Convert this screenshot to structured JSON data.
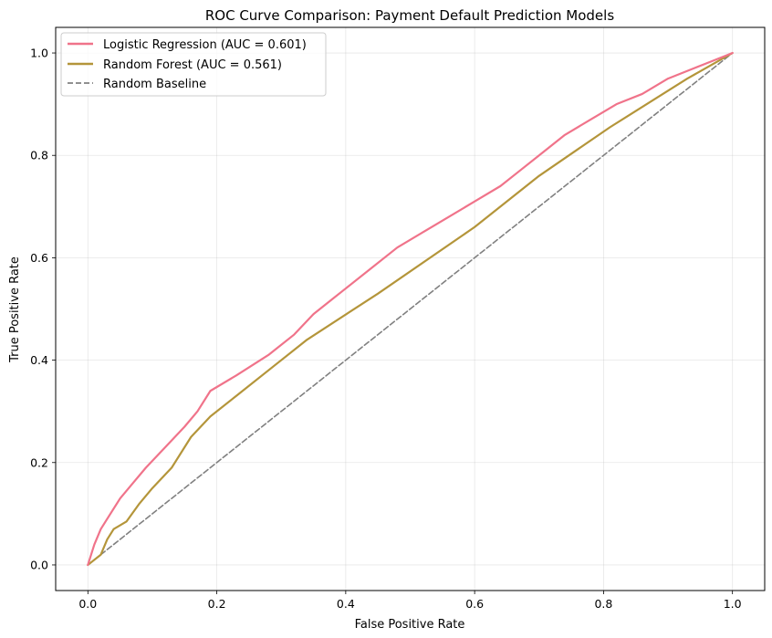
{
  "chart_data": {
    "type": "line",
    "title": "ROC Curve Comparison: Payment Default Prediction Models",
    "xlabel": "False Positive Rate",
    "ylabel": "True Positive Rate",
    "xlim": [
      -0.05,
      1.05
    ],
    "ylim": [
      -0.05,
      1.05
    ],
    "xticks": [
      0.0,
      0.2,
      0.4,
      0.6,
      0.8,
      1.0
    ],
    "yticks": [
      0.0,
      0.2,
      0.4,
      0.6,
      0.8,
      1.0
    ],
    "xtick_labels": [
      "0.0",
      "0.2",
      "0.4",
      "0.6",
      "0.8",
      "1.0"
    ],
    "ytick_labels": [
      "0.0",
      "0.2",
      "0.4",
      "0.6",
      "0.8",
      "1.0"
    ],
    "grid": true,
    "legend_position": "top-left",
    "series": [
      {
        "name": "Logistic Regression (AUC = 0.601)",
        "color": "#f0738a",
        "style": "solid",
        "x": [
          0,
          0.01,
          0.02,
          0.03,
          0.05,
          0.07,
          0.09,
          0.12,
          0.15,
          0.17,
          0.19,
          0.23,
          0.28,
          0.32,
          0.35,
          0.38,
          0.4,
          0.44,
          0.48,
          0.52,
          0.56,
          0.6,
          0.64,
          0.67,
          0.7,
          0.74,
          0.78,
          0.82,
          0.86,
          0.9,
          0.94,
          0.97,
          0.99,
          1.0
        ],
        "y": [
          0,
          0.04,
          0.07,
          0.09,
          0.13,
          0.16,
          0.19,
          0.23,
          0.27,
          0.3,
          0.34,
          0.37,
          0.41,
          0.45,
          0.49,
          0.52,
          0.54,
          0.58,
          0.62,
          0.65,
          0.68,
          0.71,
          0.74,
          0.77,
          0.8,
          0.84,
          0.87,
          0.9,
          0.92,
          0.95,
          0.97,
          0.985,
          0.995,
          1.0
        ]
      },
      {
        "name": "Random Forest (AUC = 0.561)",
        "color": "#b4953a",
        "style": "solid",
        "x": [
          0,
          0.02,
          0.03,
          0.04,
          0.06,
          0.08,
          0.1,
          0.13,
          0.16,
          0.19,
          0.23,
          0.29,
          0.34,
          0.45,
          0.6,
          0.7,
          0.81,
          0.93,
          1.0
        ],
        "y": [
          0,
          0.02,
          0.05,
          0.07,
          0.085,
          0.12,
          0.15,
          0.19,
          0.25,
          0.29,
          0.33,
          0.39,
          0.44,
          0.53,
          0.66,
          0.76,
          0.855,
          0.95,
          1.0
        ]
      },
      {
        "name": "Random Baseline",
        "color": "#808080",
        "style": "dashed",
        "x": [
          0,
          1
        ],
        "y": [
          0,
          1
        ]
      }
    ]
  }
}
